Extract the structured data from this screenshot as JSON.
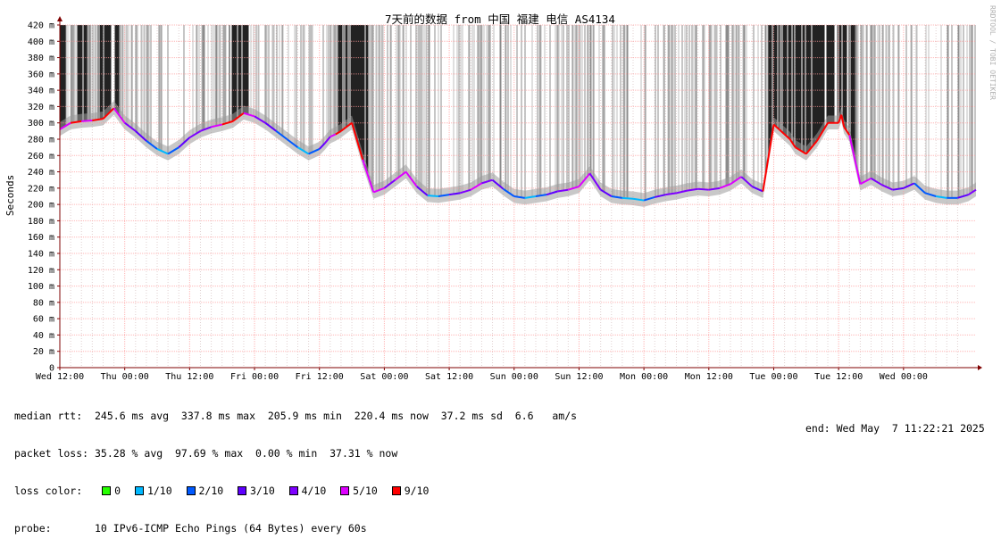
{
  "chart_data": {
    "type": "line",
    "title": "7天前的数据 from 中国 福建 电信 AS4134",
    "ylabel": "Seconds",
    "watermark": "RRDTOOL / TOBI OETIKER",
    "ylim": [
      0,
      0.42
    ],
    "yticks": [
      {
        "value": 0.0,
        "label": "0"
      },
      {
        "value": 0.02,
        "label": "20 m"
      },
      {
        "value": 0.04,
        "label": "40 m"
      },
      {
        "value": 0.06,
        "label": "60 m"
      },
      {
        "value": 0.08,
        "label": "80 m"
      },
      {
        "value": 0.1,
        "label": "100 m"
      },
      {
        "value": 0.12,
        "label": "120 m"
      },
      {
        "value": 0.14,
        "label": "140 m"
      },
      {
        "value": 0.16,
        "label": "160 m"
      },
      {
        "value": 0.18,
        "label": "180 m"
      },
      {
        "value": 0.2,
        "label": "200 m"
      },
      {
        "value": 0.22,
        "label": "220 m"
      },
      {
        "value": 0.24,
        "label": "240 m"
      },
      {
        "value": 0.26,
        "label": "260 m"
      },
      {
        "value": 0.28,
        "label": "280 m"
      },
      {
        "value": 0.3,
        "label": "300 m"
      },
      {
        "value": 0.32,
        "label": "320 m"
      },
      {
        "value": 0.34,
        "label": "340 m"
      },
      {
        "value": 0.36,
        "label": "360 m"
      },
      {
        "value": 0.38,
        "label": "380 m"
      },
      {
        "value": 0.4,
        "label": "400 m"
      },
      {
        "value": 0.42,
        "label": "420 m"
      }
    ],
    "xlim": [
      0,
      169.4
    ],
    "xticks": [
      {
        "value": 0,
        "label": "Wed 12:00"
      },
      {
        "value": 12,
        "label": "Thu 00:00"
      },
      {
        "value": 24,
        "label": "Thu 12:00"
      },
      {
        "value": 36,
        "label": "Fri 00:00"
      },
      {
        "value": 48,
        "label": "Fri 12:00"
      },
      {
        "value": 60,
        "label": "Sat 00:00"
      },
      {
        "value": 72,
        "label": "Sat 12:00"
      },
      {
        "value": 84,
        "label": "Sun 00:00"
      },
      {
        "value": 96,
        "label": "Sun 12:00"
      },
      {
        "value": 108,
        "label": "Mon 00:00"
      },
      {
        "value": 120,
        "label": "Mon 12:00"
      },
      {
        "value": 132,
        "label": "Tue 00:00"
      },
      {
        "value": 144,
        "label": "Tue 12:00"
      },
      {
        "value": 156,
        "label": "Wed 00:00"
      }
    ],
    "median_series": {
      "x": [
        0,
        2,
        4,
        6,
        8,
        10,
        12,
        14,
        16,
        18,
        20,
        22,
        24,
        26,
        28,
        30,
        32,
        34,
        36,
        38,
        40,
        42,
        44,
        46,
        48,
        49,
        50,
        51,
        52,
        54,
        56,
        58,
        60,
        62,
        64,
        66,
        68,
        70,
        72,
        74,
        76,
        78,
        80,
        82,
        84,
        86,
        88,
        90,
        92,
        94,
        96,
        98,
        100,
        102,
        104,
        106,
        108,
        110,
        112,
        114,
        116,
        118,
        120,
        122,
        124,
        126,
        128,
        130,
        132,
        133,
        134,
        135,
        136,
        138,
        140,
        142,
        144,
        144.5,
        145,
        146,
        148,
        150,
        152,
        154,
        156,
        158,
        160,
        162,
        164,
        166,
        168,
        169.4
      ],
      "y": [
        0.292,
        0.3,
        0.302,
        0.303,
        0.305,
        0.318,
        0.3,
        0.29,
        0.278,
        0.268,
        0.262,
        0.27,
        0.282,
        0.29,
        0.295,
        0.298,
        0.302,
        0.312,
        0.308,
        0.3,
        0.29,
        0.28,
        0.27,
        0.262,
        0.268,
        0.275,
        0.283,
        0.286,
        0.29,
        0.3,
        0.255,
        0.215,
        0.22,
        0.23,
        0.24,
        0.222,
        0.211,
        0.21,
        0.212,
        0.214,
        0.218,
        0.226,
        0.23,
        0.219,
        0.21,
        0.208,
        0.21,
        0.212,
        0.216,
        0.218,
        0.222,
        0.238,
        0.218,
        0.21,
        0.208,
        0.207,
        0.205,
        0.209,
        0.212,
        0.214,
        0.217,
        0.219,
        0.218,
        0.22,
        0.225,
        0.234,
        0.222,
        0.216,
        0.298,
        0.292,
        0.286,
        0.28,
        0.27,
        0.262,
        0.278,
        0.3,
        0.3,
        0.31,
        0.295,
        0.285,
        0.225,
        0.232,
        0.224,
        0.218,
        0.22,
        0.226,
        0.214,
        0.21,
        0.208,
        0.208,
        0.212,
        0.218
      ]
    },
    "loss_series": {
      "name": "loss color",
      "x": [
        0,
        2,
        4,
        6,
        8,
        10,
        12,
        14,
        16,
        18,
        20,
        22,
        24,
        26,
        28,
        30,
        32,
        34,
        36,
        38,
        40,
        42,
        44,
        46,
        48,
        49,
        50,
        51,
        52,
        54,
        56,
        58,
        60,
        62,
        64,
        66,
        68,
        70,
        72,
        74,
        76,
        78,
        80,
        82,
        84,
        86,
        88,
        90,
        92,
        94,
        96,
        98,
        100,
        102,
        104,
        106,
        108,
        110,
        112,
        114,
        116,
        118,
        120,
        122,
        124,
        126,
        128,
        130,
        132,
        133,
        134,
        135,
        136,
        138,
        140,
        142,
        144,
        144.5,
        145,
        146,
        148,
        150,
        152,
        154,
        156,
        158,
        160,
        162,
        164,
        166,
        168,
        169.4
      ],
      "loss": [
        9,
        5,
        9,
        5,
        9,
        9,
        5,
        4,
        3,
        2,
        1,
        2,
        3,
        4,
        4,
        5,
        9,
        9,
        5,
        4,
        3,
        2,
        2,
        1,
        2,
        3,
        4,
        5,
        9,
        9,
        9,
        5,
        5,
        4,
        5,
        5,
        3,
        1,
        2,
        3,
        4,
        5,
        4,
        3,
        2,
        2,
        1,
        2,
        3,
        4,
        5,
        5,
        4,
        3,
        2,
        1,
        1,
        2,
        3,
        4,
        4,
        4,
        4,
        4,
        5,
        5,
        4,
        3,
        9,
        9,
        9,
        9,
        9,
        9,
        9,
        9,
        9,
        9,
        9,
        9,
        5,
        5,
        4,
        4,
        3,
        3,
        2,
        2,
        1,
        2,
        3,
        4
      ]
    },
    "loss_band_top": 0.42,
    "loss_colors": {
      "0": "#26ff00",
      "1": "#00b8ff",
      "2": "#0059ff",
      "3": "#5e00ff",
      "4": "#7e00ff",
      "5": "#dd00ff",
      "9": "#ff0000"
    },
    "colors": {
      "grid": "#ff9999",
      "minor_grid": "#e0d0d0",
      "axis": "#7f0000",
      "smoke_light": "#bfbfbf",
      "smoke_mid": "#8c8c8c",
      "smoke_dark": "#222222"
    },
    "grid": true
  },
  "stats": {
    "median_rtt": "median rtt:  245.6 ms avg  337.8 ms max  205.9 ms min  220.4 ms now  37.2 ms sd  6.6   am/s",
    "packet_loss": "packet loss: 35.28 % avg  97.69 % max  0.00 % min  37.31 % now",
    "loss_color_label": "loss color:",
    "loss_legend": [
      {
        "label": "0",
        "color": "#26ff00"
      },
      {
        "label": "1/10",
        "color": "#00b8ff"
      },
      {
        "label": "2/10",
        "color": "#0059ff"
      },
      {
        "label": "3/10",
        "color": "#5e00ff"
      },
      {
        "label": "4/10",
        "color": "#7e00ff"
      },
      {
        "label": "5/10",
        "color": "#dd00ff"
      },
      {
        "label": "9/10",
        "color": "#ff0000"
      }
    ],
    "probe": "probe:       10 IPv6-ICMP Echo Pings (64 Bytes) every 60s",
    "end": "end: Wed May  7 11:22:21 2025"
  }
}
